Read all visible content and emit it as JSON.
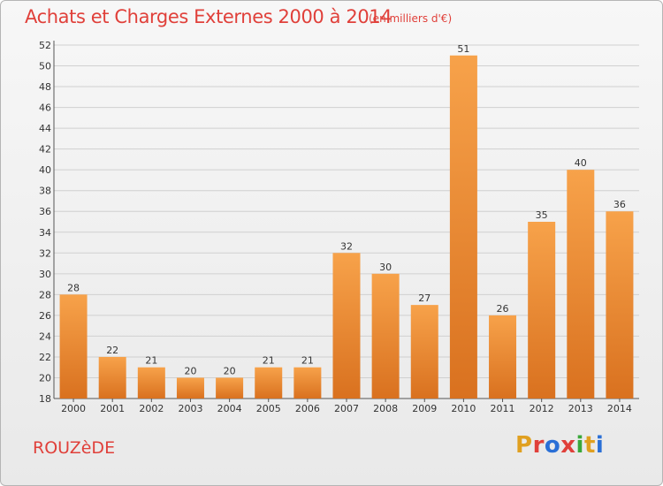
{
  "header": {
    "title": "Achats et Charges Externes 2000 à 2014",
    "subtitle": "(en milliers d'€)"
  },
  "footer": {
    "city": "ROUZèDE",
    "logo": "Proxiti",
    "logo_colors": [
      "#e0a020",
      "#e0403a",
      "#2a6fd6",
      "#e0403a",
      "#3aa83a",
      "#e0a020",
      "#2a6fd6"
    ]
  },
  "colors": {
    "bar_light": "#f7a24a",
    "bar_dark": "#d9711f",
    "grid": "#d0d0d0",
    "axis": "#555555"
  },
  "chart_data": {
    "type": "bar",
    "title": "Achats et Charges Externes 2000 à 2014",
    "subtitle": "(en milliers d'€)",
    "categories": [
      "2000",
      "2001",
      "2002",
      "2003",
      "2004",
      "2005",
      "2006",
      "2007",
      "2008",
      "2009",
      "2010",
      "2011",
      "2012",
      "2013",
      "2014"
    ],
    "values": [
      28,
      22,
      21,
      20,
      20,
      21,
      21,
      32,
      30,
      27,
      51,
      26,
      35,
      40,
      36
    ],
    "ylim": [
      18,
      52
    ],
    "yticks": [
      18,
      20,
      22,
      24,
      26,
      28,
      30,
      32,
      34,
      36,
      38,
      40,
      42,
      44,
      46,
      48,
      50,
      52
    ],
    "grid": true,
    "xlabel": "",
    "ylabel": ""
  }
}
